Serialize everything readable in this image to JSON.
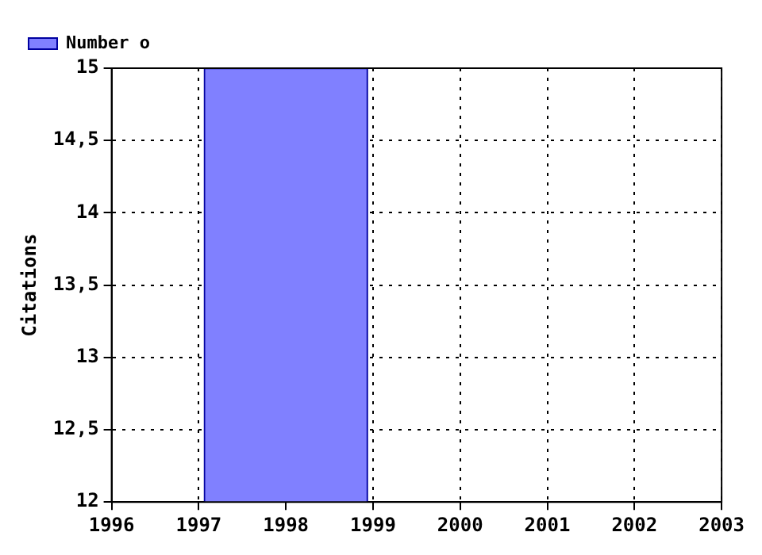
{
  "chart_data": {
    "type": "bar",
    "ylabel": "Citations",
    "x": [
      1998
    ],
    "series": [
      {
        "name": "Number o",
        "color": "#8080ff",
        "values": [
          15
        ]
      }
    ],
    "xlim": [
      1996,
      2003
    ],
    "xticks": [
      1996,
      1997,
      1998,
      1999,
      2000,
      2001,
      2002,
      2003
    ],
    "ylim": [
      12,
      15
    ],
    "yticks": [
      {
        "value": 12,
        "label": "12"
      },
      {
        "value": 12.5,
        "label": "12,5"
      },
      {
        "value": 13,
        "label": "13"
      },
      {
        "value": 13.5,
        "label": "13,5"
      },
      {
        "value": 14,
        "label": "14"
      },
      {
        "value": 14.5,
        "label": "14,5"
      },
      {
        "value": 15,
        "label": "15"
      }
    ],
    "grid": true,
    "legend": "top left"
  }
}
